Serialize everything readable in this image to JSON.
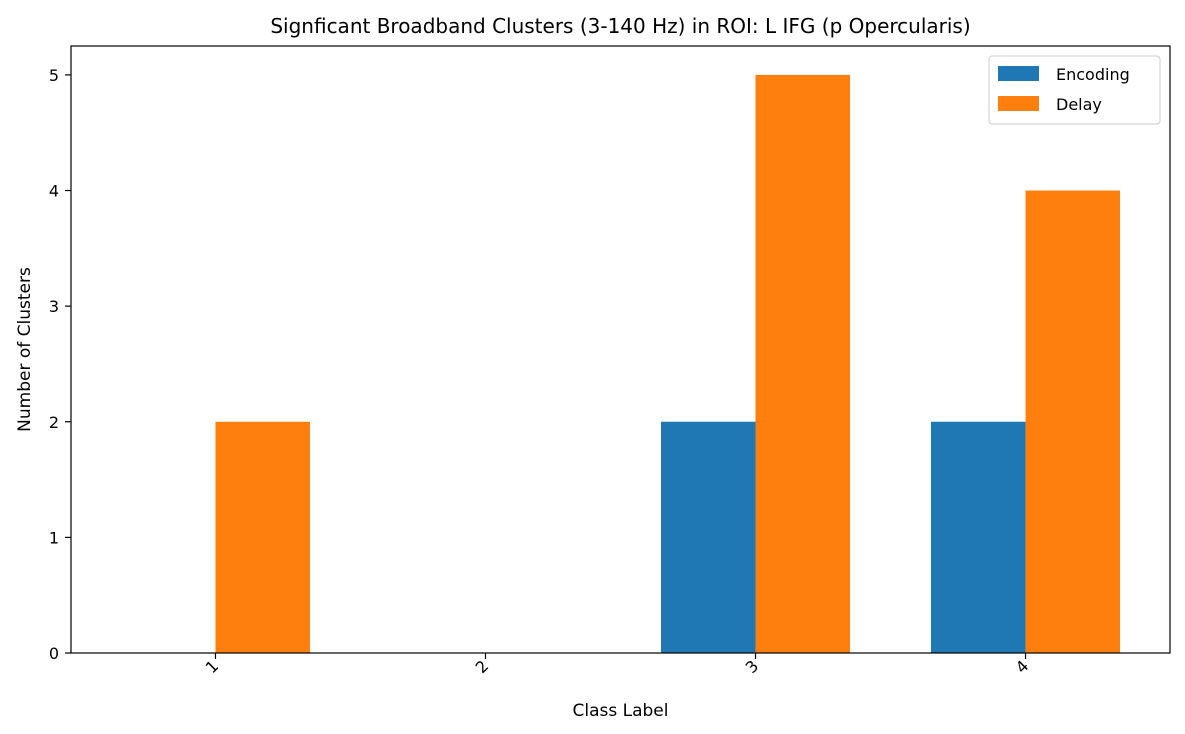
{
  "chart_data": {
    "type": "bar",
    "title": "Signficant Broadband Clusters (3-140 Hz) in ROI: L IFG (p Opercularis)",
    "xlabel": "Class Label",
    "ylabel": "Number of Clusters",
    "categories": [
      "1",
      "2",
      "3",
      "4"
    ],
    "yticks": [
      "0",
      "1",
      "2",
      "3",
      "4",
      "5"
    ],
    "ylim": [
      0,
      5.25
    ],
    "grid": false,
    "legend_position": "top-right",
    "series": [
      {
        "name": "Encoding",
        "color": "#1f77b4",
        "values": [
          0,
          0,
          2,
          2
        ]
      },
      {
        "name": "Delay",
        "color": "#ff7f0e",
        "values": [
          2,
          0,
          5,
          4
        ]
      }
    ]
  }
}
